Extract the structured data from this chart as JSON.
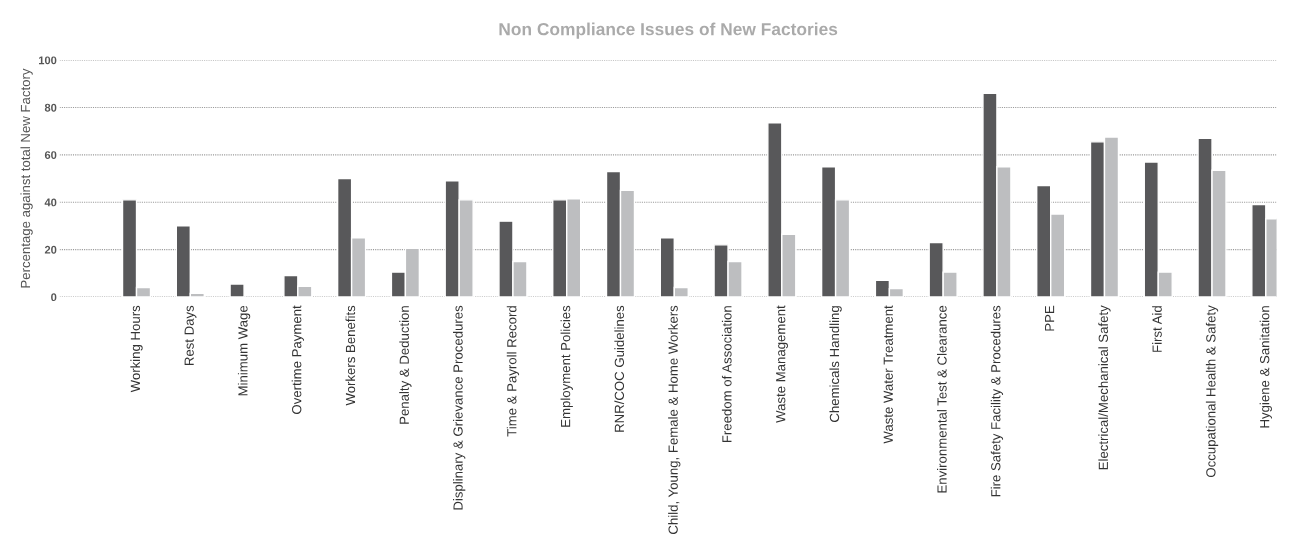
{
  "chart_data": {
    "type": "bar",
    "title": "Non Compliance Issues of New Factories",
    "ylabel": "Percentage against total New Factory",
    "categories": [
      "Working Hours",
      "Rest Days",
      "Minimum Wage",
      "Overtime Payment",
      "Workers Benefits",
      "Penalty & Deduction",
      "Displinary & Grievance Procedures",
      "Time & Payroll Record",
      "Employment Policies",
      "RNR/COC Guidelines",
      "Child, Young, Female & Home Workers",
      "Freedom of Association",
      "Waste Management",
      "Chemicals Handling",
      "Waste Water Treatment",
      "Environmental Test & Clearance",
      "Fire Safety Facility & Procedures",
      "PPE",
      "Electrical/Mechanical Safety",
      "First Aid",
      "Occupational Health & Safety",
      "Hygiene & Sanitation"
    ],
    "series": [
      {
        "color": "#58585a",
        "values": [
          41,
          30,
          5.5,
          9,
          50,
          10.5,
          49,
          32,
          41,
          53,
          25,
          22,
          73.5,
          55,
          7,
          23,
          86,
          47,
          65.5,
          57,
          67,
          39
        ]
      },
      {
        "color": "#bdbec0",
        "values": [
          4,
          1.5,
          null,
          4.5,
          25,
          20.5,
          41,
          15,
          41.5,
          45,
          4,
          15,
          26.5,
          41,
          3.5,
          10.5,
          55,
          35,
          67.5,
          10.5,
          53.5,
          33
        ]
      }
    ],
    "ylim": [
      0,
      100
    ],
    "yticks": [
      0,
      20,
      40,
      60,
      80,
      100
    ],
    "grid": "y",
    "legend": false
  }
}
